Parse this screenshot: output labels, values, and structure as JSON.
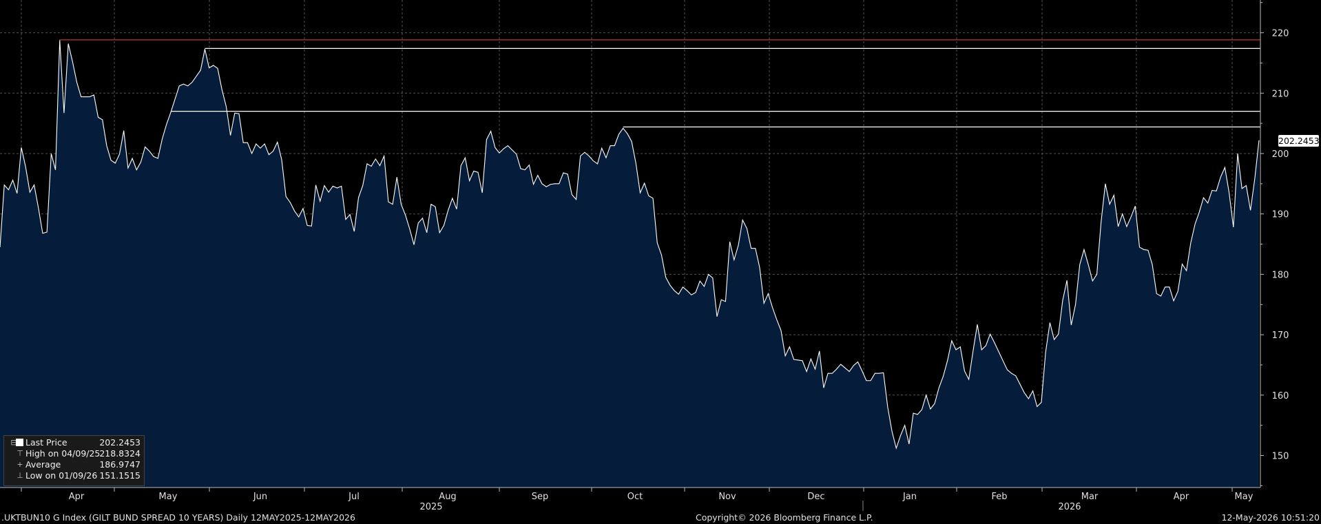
{
  "chart_data": {
    "type": "area",
    "ylim": [
      145,
      225
    ],
    "yticks": [
      150,
      160,
      170,
      180,
      190,
      200,
      210,
      220
    ],
    "grid": true,
    "month_ticks": [
      "Apr",
      "May",
      "Jun",
      "Jul",
      "Aug",
      "Sep",
      "Oct",
      "Nov",
      "Dec",
      "Jan",
      "Feb",
      "Mar",
      "Apr",
      "May"
    ],
    "year_labels": [
      "2025",
      "2026"
    ],
    "values": [
      184.5,
      194.8,
      194.0,
      195.6,
      193.4,
      201.0,
      197.8,
      193.6,
      194.8,
      191.0,
      186.8,
      187.0,
      200.0,
      197.3,
      218.8,
      206.7,
      218.2,
      215.2,
      211.8,
      209.4,
      209.4,
      209.4,
      209.7,
      206.0,
      205.6,
      201.3,
      198.9,
      198.4,
      199.9,
      203.8,
      197.6,
      199.2,
      197.3,
      198.6,
      201.1,
      200.4,
      199.5,
      199.2,
      202.4,
      204.8,
      206.8,
      209.0,
      211.2,
      211.5,
      211.2,
      211.8,
      212.8,
      213.8,
      217.3,
      214.2,
      214.6,
      214.1,
      210.6,
      207.8,
      203.0,
      206.7,
      206.6,
      201.8,
      201.8,
      200.0,
      201.6,
      200.9,
      201.6,
      199.8,
      200.4,
      201.9,
      199.0,
      192.9,
      191.9,
      190.5,
      189.5,
      190.9,
      188.1,
      188.0,
      194.8,
      192.1,
      194.7,
      193.6,
      194.6,
      194.3,
      194.6,
      189.1,
      189.9,
      187.1,
      192.7,
      194.7,
      198.3,
      197.9,
      199.1,
      198.0,
      199.6,
      192.0,
      191.6,
      196.1,
      191.6,
      189.8,
      187.5,
      184.9,
      188.5,
      189.3,
      186.9,
      191.6,
      191.2,
      186.9,
      188.1,
      190.6,
      192.6,
      190.8,
      198.0,
      199.3,
      195.5,
      197.1,
      196.9,
      193.5,
      202.3,
      203.7,
      201.0,
      200.1,
      200.8,
      201.3,
      200.6,
      199.9,
      197.5,
      197.3,
      198.1,
      194.9,
      196.4,
      195.0,
      194.5,
      194.9,
      195.0,
      195.0,
      196.8,
      196.6,
      193.2,
      192.4,
      199.6,
      200.2,
      199.6,
      198.8,
      198.3,
      200.9,
      199.3,
      201.3,
      201.3,
      203.2,
      204.2,
      203.3,
      202.0,
      198.4,
      193.5,
      195.1,
      193.0,
      192.6,
      185.2,
      183.2,
      179.5,
      178.2,
      177.3,
      176.7,
      177.9,
      177.3,
      176.6,
      177.0,
      178.9,
      178.0,
      180.0,
      179.4,
      173.0,
      175.8,
      175.5,
      185.4,
      182.4,
      184.8,
      189.0,
      187.6,
      184.3,
      184.3,
      181.1,
      175.2,
      176.8,
      174.5,
      172.5,
      170.7,
      166.5,
      168.0,
      165.9,
      165.8,
      165.7,
      163.9,
      166.0,
      164.3,
      167.3,
      161.2,
      163.6,
      163.6,
      164.3,
      165.1,
      164.5,
      163.9,
      164.9,
      165.5,
      164.0,
      162.4,
      162.4,
      163.6,
      163.6,
      163.7,
      158.0,
      154.0,
      151.2,
      153.3,
      155.0,
      151.9,
      157.0,
      156.8,
      157.6,
      160.0,
      157.7,
      158.6,
      161.2,
      163.1,
      165.7,
      169.0,
      167.5,
      168.0,
      164.0,
      162.6,
      167.3,
      171.7,
      167.5,
      168.2,
      170.1,
      168.7,
      167.2,
      165.7,
      164.2,
      163.6,
      163.2,
      161.8,
      160.4,
      159.4,
      160.7,
      158.1,
      158.8,
      167.1,
      172.0,
      169.2,
      170.1,
      175.7,
      179.0,
      171.6,
      175.0,
      181.6,
      184.1,
      181.6,
      178.9,
      180.0,
      188.7,
      195.0,
      191.6,
      193.1,
      187.9,
      190.0,
      187.9,
      189.5,
      191.3,
      184.5,
      184.1,
      184.0,
      181.6,
      176.8,
      176.4,
      177.9,
      177.9,
      175.6,
      177.2,
      181.7,
      180.6,
      185.2,
      188.3,
      190.3,
      192.7,
      191.8,
      193.9,
      193.8,
      196.1,
      197.7,
      193.5,
      187.8,
      200.0,
      194.2,
      194.7,
      190.6,
      195.8,
      202.2
    ],
    "horizontal_lines": [
      {
        "value": 218.8324,
        "color": "#c0392b"
      },
      {
        "value": 217.4,
        "color": "#ffffff"
      },
      {
        "value": 207.0,
        "color": "#ffffff"
      },
      {
        "value": 204.4,
        "color": "#ffffff"
      }
    ]
  },
  "legend": {
    "rows": [
      {
        "label": "Last Price",
        "value": "202.2453"
      },
      {
        "label": "High on 04/09/25",
        "value": "218.8324"
      },
      {
        "label": "Average",
        "value": "186.9747"
      },
      {
        "label": "Low on 01/09/26",
        "value": "151.1515"
      }
    ]
  },
  "last_price_tag": "202.2453",
  "footer": {
    "left": ".UKTBUN10 G Index (GILT BUND SPREAD 10 YEARS) Daily 12MAY2025-12MAY2026",
    "center": "Copyright© 2026 Bloomberg Finance L.P.",
    "right": "12-May-2026 10:51:20"
  },
  "colors": {
    "background": "#000000",
    "area_fill": "#051d3a",
    "line": "#ffffff",
    "grid": "#555555",
    "high_line": "#c0392b"
  }
}
